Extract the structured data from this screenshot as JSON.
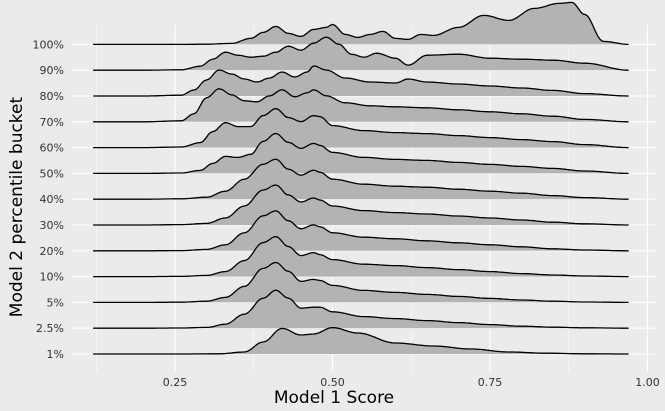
{
  "chart_data": {
    "type": "area",
    "subtype": "ridgeline",
    "title": "",
    "xlabel": "Model 1 Score",
    "ylabel": "Model 2 percentile bucket",
    "xlim": [
      0.12,
      1.0
    ],
    "x_ticks": [
      "0.25",
      "0.50",
      "0.75",
      "1.00"
    ],
    "x_tick_values": [
      0.25,
      0.5,
      0.75,
      1.0
    ],
    "grid": true,
    "fill_color": "#b3b3b3",
    "line_color": "#000000",
    "background_color": "#ebebeb",
    "categories": [
      "1%",
      "2.5%",
      "5%",
      "10%",
      "20%",
      "30%",
      "40%",
      "50%",
      "60%",
      "70%",
      "80%",
      "90%",
      "100%"
    ],
    "series": [
      {
        "name": "1%",
        "x": [
          0.12,
          0.2,
          0.26,
          0.32,
          0.36,
          0.39,
          0.42,
          0.45,
          0.47,
          0.5,
          0.54,
          0.6,
          0.66,
          0.72,
          0.78,
          0.84,
          0.9,
          0.97
        ],
        "density": [
          0,
          0,
          0,
          0.01,
          0.1,
          0.6,
          1.28,
          0.95,
          1.0,
          1.32,
          1.05,
          0.55,
          0.4,
          0.25,
          0.1,
          0.04,
          0.01,
          0
        ]
      },
      {
        "name": "2.5%",
        "x": [
          0.12,
          0.2,
          0.26,
          0.3,
          0.33,
          0.36,
          0.39,
          0.41,
          0.43,
          0.45,
          0.47,
          0.48,
          0.5,
          0.55,
          0.6,
          0.65,
          0.7,
          0.75,
          0.8,
          0.85,
          0.9,
          0.97
        ],
        "density": [
          0,
          0,
          0.01,
          0.04,
          0.2,
          0.7,
          1.5,
          1.9,
          1.5,
          1.0,
          1.05,
          1.05,
          0.82,
          0.58,
          0.48,
          0.38,
          0.28,
          0.18,
          0.1,
          0.05,
          0.02,
          0
        ]
      },
      {
        "name": "5%",
        "x": [
          0.12,
          0.2,
          0.26,
          0.3,
          0.33,
          0.36,
          0.39,
          0.41,
          0.43,
          0.45,
          0.47,
          0.48,
          0.5,
          0.55,
          0.6,
          0.65,
          0.7,
          0.75,
          0.8,
          0.85,
          0.9,
          0.97
        ],
        "density": [
          0,
          0,
          0.01,
          0.06,
          0.25,
          0.8,
          1.7,
          2.0,
          1.55,
          1.05,
          1.15,
          1.1,
          0.85,
          0.6,
          0.5,
          0.4,
          0.3,
          0.2,
          0.12,
          0.06,
          0.02,
          0
        ]
      },
      {
        "name": "10%",
        "x": [
          0.12,
          0.2,
          0.26,
          0.3,
          0.33,
          0.36,
          0.39,
          0.41,
          0.43,
          0.45,
          0.47,
          0.48,
          0.5,
          0.55,
          0.6,
          0.65,
          0.7,
          0.75,
          0.8,
          0.85,
          0.9,
          0.97
        ],
        "density": [
          0,
          0,
          0.01,
          0.06,
          0.25,
          0.8,
          1.7,
          2.0,
          1.5,
          1.05,
          1.2,
          1.1,
          0.85,
          0.62,
          0.55,
          0.45,
          0.35,
          0.25,
          0.15,
          0.08,
          0.03,
          0
        ]
      },
      {
        "name": "20%",
        "x": [
          0.12,
          0.2,
          0.26,
          0.3,
          0.33,
          0.36,
          0.39,
          0.41,
          0.43,
          0.45,
          0.47,
          0.48,
          0.5,
          0.55,
          0.6,
          0.65,
          0.7,
          0.75,
          0.8,
          0.85,
          0.9,
          0.97
        ],
        "density": [
          0,
          0,
          0.01,
          0.07,
          0.3,
          0.9,
          1.75,
          2.0,
          1.5,
          1.1,
          1.3,
          1.2,
          0.9,
          0.68,
          0.6,
          0.5,
          0.4,
          0.3,
          0.2,
          0.1,
          0.04,
          0
        ]
      },
      {
        "name": "30%",
        "x": [
          0.12,
          0.2,
          0.26,
          0.3,
          0.33,
          0.36,
          0.39,
          0.41,
          0.43,
          0.45,
          0.47,
          0.48,
          0.5,
          0.55,
          0.6,
          0.65,
          0.7,
          0.75,
          0.8,
          0.85,
          0.9,
          0.97
        ],
        "density": [
          0,
          0,
          0.02,
          0.08,
          0.35,
          0.95,
          1.75,
          2.0,
          1.5,
          1.15,
          1.35,
          1.25,
          0.95,
          0.72,
          0.62,
          0.55,
          0.45,
          0.35,
          0.25,
          0.14,
          0.06,
          0
        ]
      },
      {
        "name": "40%",
        "x": [
          0.12,
          0.2,
          0.26,
          0.3,
          0.33,
          0.36,
          0.39,
          0.41,
          0.43,
          0.45,
          0.47,
          0.48,
          0.5,
          0.55,
          0.6,
          0.65,
          0.7,
          0.75,
          0.8,
          0.85,
          0.9,
          0.97
        ],
        "density": [
          0,
          0,
          0.02,
          0.1,
          0.4,
          1.0,
          1.75,
          2.0,
          1.5,
          1.2,
          1.45,
          1.35,
          1.0,
          0.75,
          0.65,
          0.6,
          0.5,
          0.4,
          0.3,
          0.18,
          0.08,
          0
        ]
      },
      {
        "name": "50%",
        "x": [
          0.12,
          0.2,
          0.26,
          0.29,
          0.31,
          0.33,
          0.35,
          0.37,
          0.39,
          0.41,
          0.43,
          0.45,
          0.47,
          0.48,
          0.5,
          0.55,
          0.6,
          0.65,
          0.7,
          0.75,
          0.8,
          0.85,
          0.9,
          0.97
        ],
        "density": [
          0,
          0,
          0.02,
          0.15,
          0.5,
          0.85,
          0.8,
          0.95,
          1.6,
          2.0,
          1.55,
          1.25,
          1.5,
          1.4,
          1.05,
          0.8,
          0.7,
          0.65,
          0.55,
          0.45,
          0.35,
          0.25,
          0.12,
          0
        ]
      },
      {
        "name": "60%",
        "x": [
          0.12,
          0.2,
          0.26,
          0.29,
          0.31,
          0.33,
          0.35,
          0.37,
          0.39,
          0.41,
          0.43,
          0.45,
          0.47,
          0.48,
          0.5,
          0.55,
          0.6,
          0.65,
          0.7,
          0.75,
          0.8,
          0.85,
          0.9,
          0.97
        ],
        "density": [
          0,
          0,
          0.03,
          0.25,
          0.8,
          1.25,
          1.05,
          1.05,
          1.6,
          1.95,
          1.5,
          1.3,
          1.6,
          1.55,
          1.1,
          0.85,
          0.75,
          0.7,
          0.6,
          0.5,
          0.4,
          0.3,
          0.15,
          0
        ]
      },
      {
        "name": "70%",
        "x": [
          0.12,
          0.2,
          0.26,
          0.28,
          0.3,
          0.32,
          0.34,
          0.36,
          0.38,
          0.4,
          0.42,
          0.44,
          0.46,
          0.47,
          0.49,
          0.52,
          0.56,
          0.6,
          0.65,
          0.7,
          0.75,
          0.8,
          0.85,
          0.9,
          0.97
        ],
        "density": [
          0,
          0,
          0.05,
          0.4,
          1.2,
          1.65,
          1.35,
          1.05,
          1.0,
          1.3,
          1.6,
          1.25,
          1.45,
          1.6,
          1.3,
          0.95,
          0.8,
          0.75,
          0.7,
          0.6,
          0.5,
          0.4,
          0.28,
          0.12,
          0
        ]
      },
      {
        "name": "80%",
        "x": [
          0.12,
          0.2,
          0.26,
          0.28,
          0.3,
          0.32,
          0.34,
          0.36,
          0.38,
          0.4,
          0.42,
          0.44,
          0.46,
          0.47,
          0.49,
          0.52,
          0.56,
          0.6,
          0.62,
          0.65,
          0.7,
          0.75,
          0.8,
          0.85,
          0.9,
          0.97
        ],
        "density": [
          0,
          0,
          0.04,
          0.3,
          0.8,
          1.3,
          1.1,
          0.85,
          0.7,
          0.9,
          1.2,
          0.95,
          1.2,
          1.5,
          1.3,
          0.9,
          0.7,
          0.65,
          0.85,
          0.7,
          0.6,
          0.5,
          0.4,
          0.28,
          0.12,
          0
        ]
      },
      {
        "name": "90%",
        "x": [
          0.12,
          0.2,
          0.26,
          0.29,
          0.31,
          0.33,
          0.35,
          0.37,
          0.39,
          0.41,
          0.43,
          0.45,
          0.47,
          0.49,
          0.51,
          0.53,
          0.55,
          0.57,
          0.6,
          0.62,
          0.65,
          0.7,
          0.75,
          0.8,
          0.85,
          0.9,
          0.97
        ],
        "density": [
          0,
          0,
          0.02,
          0.2,
          0.55,
          0.9,
          0.75,
          0.65,
          0.7,
          0.9,
          1.2,
          1.0,
          1.35,
          1.65,
          1.3,
          0.8,
          0.65,
          0.85,
          0.6,
          0.25,
          0.75,
          0.8,
          0.6,
          0.55,
          0.5,
          0.35,
          0
        ]
      },
      {
        "name": "100%",
        "x": [
          0.12,
          0.2,
          0.26,
          0.3,
          0.34,
          0.37,
          0.39,
          0.41,
          0.43,
          0.45,
          0.47,
          0.49,
          0.5,
          0.52,
          0.54,
          0.56,
          0.58,
          0.6,
          0.62,
          0.64,
          0.66,
          0.7,
          0.74,
          0.78,
          0.82,
          0.86,
          0.88,
          0.9,
          0.93,
          0.97
        ],
        "density": [
          0,
          0,
          0,
          0.01,
          0.05,
          0.3,
          0.6,
          0.9,
          0.55,
          0.4,
          0.75,
          0.85,
          1.0,
          0.5,
          0.35,
          0.5,
          0.65,
          0.3,
          0.25,
          0.5,
          0.45,
          0.85,
          1.45,
          1.2,
          1.8,
          2.05,
          2.1,
          1.5,
          0.15,
          0
        ]
      }
    ]
  }
}
